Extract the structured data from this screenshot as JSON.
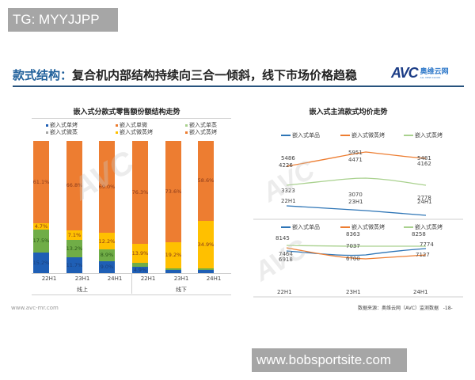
{
  "overlay": {
    "tg_badge": "TG: MYYJJPP",
    "site_badge": "www.bobsportsite.com"
  },
  "slide": {
    "headline_key": "款式结构：",
    "headline_rest": "复合机内部结构持续向三合一倾斜，线下市场价格趋稳",
    "logo_text": "AVC",
    "logo_cn": "奥维云网",
    "logo_en": "ALL VIEW CLOUD",
    "footer_url": "www.avc-mr.com",
    "footer_source": "数据来源：奥维云网（AVC）监测数据",
    "page_number": "-18-"
  },
  "chart_data": [
    {
      "type": "bar",
      "stacked": true,
      "title": "嵌入式分款式零售额份额结构走势",
      "categories": [
        "22H1",
        "23H1",
        "24H1",
        "22H1",
        "23H1",
        "24H1"
      ],
      "groups": [
        {
          "label": "线上",
          "categories": [
            "22H1",
            "23H1",
            "24H1"
          ]
        },
        {
          "label": "线下",
          "categories": [
            "22H1",
            "23H1",
            "24H1"
          ]
        }
      ],
      "legend": [
        "嵌入式单烤",
        "嵌入式单微",
        "嵌入式单蒸",
        "嵌入式微蒸",
        "嵌入式微蒸烤",
        "嵌入式蒸烤"
      ],
      "colors": {
        "嵌入式单烤": "#1f5fb5",
        "嵌入式单微": "#ed7d31",
        "嵌入式单蒸": "#a9d18e",
        "嵌入式微蒸": "#a5a5a5",
        "嵌入式微蒸烤": "#ffc000",
        "嵌入式蒸烤": "#ed7d31"
      },
      "series": [
        {
          "name": "嵌入式单烤",
          "values": [
            15.2,
            11.7,
            9.0,
            4.9,
            2.2,
            2.5
          ],
          "labels": [
            "15.2%",
            "11.7%",
            "9.0%",
            "4.9%",
            "2.2%",
            "2.5%"
          ]
        },
        {
          "name": "嵌入式单蒸",
          "values": [
            17.5,
            13.2,
            8.9,
            2.9,
            1.3,
            1.1
          ],
          "labels": [
            "17.5%",
            "13.2%",
            "8.9%",
            "2.9%",
            "1.3%",
            "1.1%"
          ]
        },
        {
          "name": "嵌入式微蒸烤",
          "values": [
            4.7,
            7.1,
            12.2,
            13.9,
            19.2,
            34.9
          ],
          "labels": [
            "4.7%",
            "7.1%",
            "12.2%",
            "13.9%",
            "19.2%",
            "34.9%"
          ]
        },
        {
          "name": "嵌入式蒸烤",
          "values": [
            61.1,
            66.8,
            69.0,
            76.3,
            73.6,
            58.6
          ],
          "labels": [
            "61.1%",
            "66.8%",
            "69.0%",
            "76.3%",
            "73.6%",
            "58.6%"
          ]
        }
      ],
      "ylim": [
        0,
        100
      ]
    },
    {
      "type": "line",
      "title": "嵌入式主流款式均价走势",
      "subtitle": "线上",
      "x": [
        "22H1",
        "23H1",
        "24H1"
      ],
      "series": [
        {
          "name": "嵌入式单品",
          "color": "#2e75b6",
          "values": [
            3323,
            3070,
            2778
          ]
        },
        {
          "name": "嵌入式微蒸烤",
          "color": "#ed7d31",
          "values": [
            5486,
            5951,
            5481
          ]
        },
        {
          "name": "嵌入式蒸烤",
          "color": "#a9d18e",
          "values": [
            4226,
            4471,
            4162
          ]
        }
      ]
    },
    {
      "type": "line",
      "subtitle": "线下",
      "x": [
        "22H1",
        "23H1",
        "24H1"
      ],
      "series": [
        {
          "name": "嵌入式单品",
          "color": "#2e75b6",
          "values": [
            7464,
            7037,
            7774
          ]
        },
        {
          "name": "嵌入式微蒸烤",
          "color": "#ed7d31",
          "values": [
            6918,
            6700,
            7127
          ]
        },
        {
          "name": "嵌入式蒸烤",
          "color": "#a9d18e",
          "values": [
            8145,
            8363,
            8258
          ]
        }
      ]
    }
  ],
  "left_chart": {
    "title": "嵌入式分款式零售额份额结构走势",
    "legend": [
      {
        "label": "嵌入式单烤",
        "color": "#1f5fb5"
      },
      {
        "label": "嵌入式单微",
        "color": "#ed7d31"
      },
      {
        "label": "嵌入式单蒸",
        "color": "#a9d18e"
      },
      {
        "label": "嵌入式微蒸",
        "color": "#a5a5a5"
      },
      {
        "label": "嵌入式微蒸烤",
        "color": "#ffc000"
      },
      {
        "label": "嵌入式蒸烤",
        "color": "#ed7d31"
      }
    ],
    "x_labels": [
      "22H1",
      "23H1",
      "24H1",
      "22H1",
      "23H1",
      "24H1"
    ],
    "group_labels": [
      "线上",
      "线下"
    ]
  },
  "right_chart": {
    "title": "嵌入式主流款式均价走势",
    "legend": [
      "嵌入式单品",
      "嵌入式微蒸烤",
      "嵌入式蒸烤"
    ],
    "top_values": {
      "orange": [
        "5486",
        "5951",
        "5481"
      ],
      "green": [
        "4226",
        "4471",
        "4162"
      ],
      "blue": [
        "3323",
        "3070",
        "2778"
      ]
    },
    "bottom_values": {
      "green": [
        "8145",
        "8363",
        "8258"
      ],
      "blue": [
        "7464",
        "7037",
        "7774"
      ],
      "orange": [
        "6918",
        "6700",
        "7127"
      ]
    },
    "x_labels": [
      "22H1",
      "23H1",
      "24H1"
    ]
  }
}
